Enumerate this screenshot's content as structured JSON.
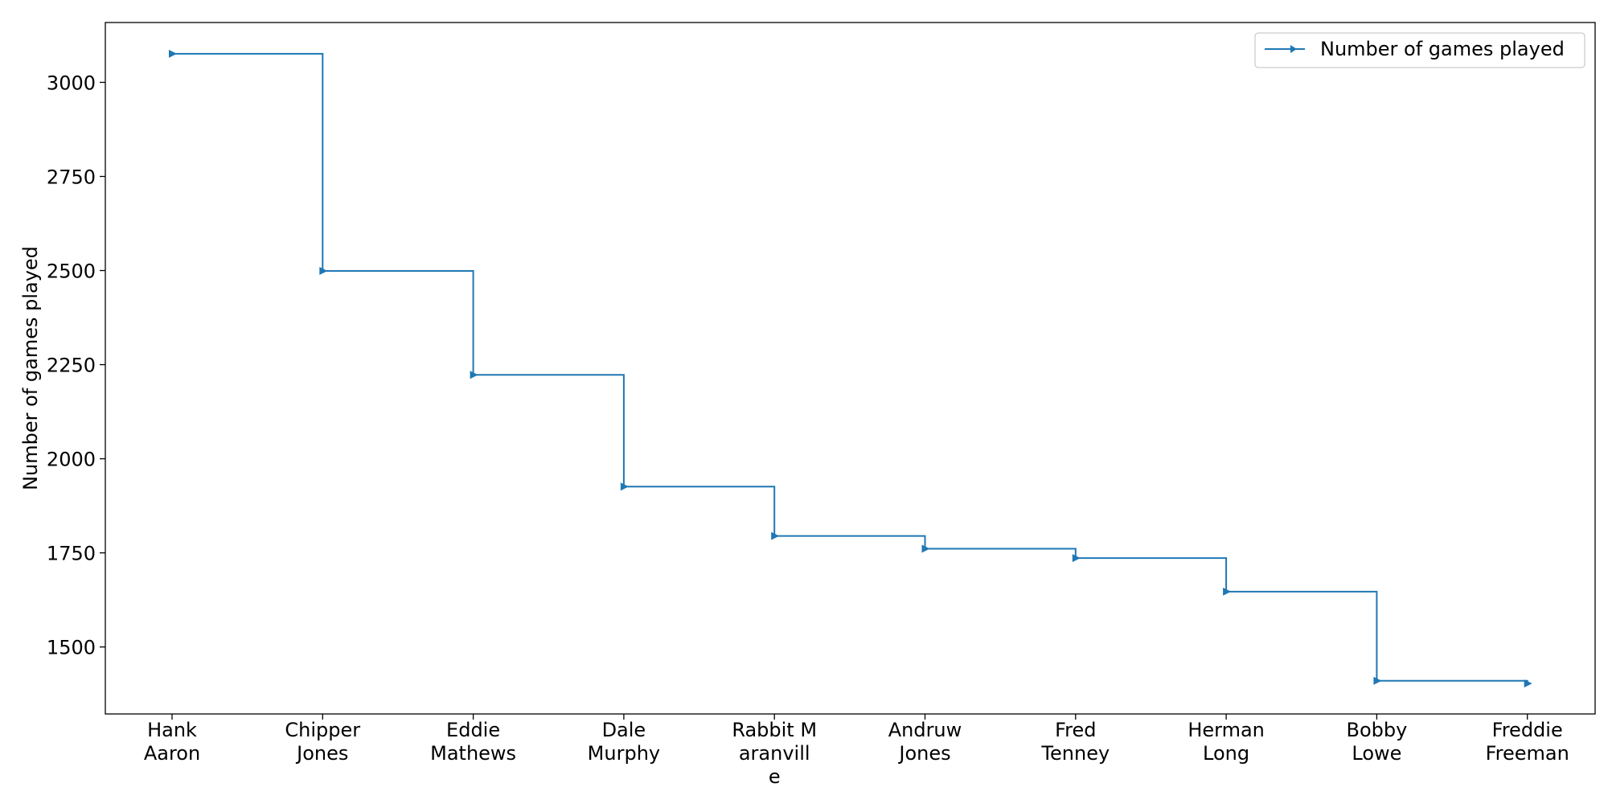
{
  "chart_data": {
    "type": "line",
    "step": "post",
    "categories": [
      [
        "Hank",
        "Aaron"
      ],
      [
        "Chipper",
        "Jones"
      ],
      [
        "Eddie",
        "Mathews"
      ],
      [
        "Dale",
        "Murphy"
      ],
      [
        "Rabbit M",
        "aranvill",
        "e"
      ],
      [
        "Andruw",
        "Jones"
      ],
      [
        "Fred",
        "Tenney"
      ],
      [
        "Herman",
        "Long"
      ],
      [
        "Bobby",
        "Lowe"
      ],
      [
        "Freddie",
        "Freeman"
      ]
    ],
    "series": [
      {
        "name": "Number of games played",
        "values": [
          3076,
          2499,
          2223,
          1926,
          1795,
          1761,
          1736,
          1647,
          1410,
          1403
        ],
        "color": "#1f77b4",
        "marker": "triangle-right"
      }
    ],
    "title": "",
    "xlabel": "",
    "ylabel": "Number of games played",
    "ylim": [
      1322,
      3159
    ],
    "yticks": [
      1500,
      1750,
      2000,
      2250,
      2500,
      2750,
      3000
    ],
    "grid": false,
    "legend_position": "top-right"
  }
}
